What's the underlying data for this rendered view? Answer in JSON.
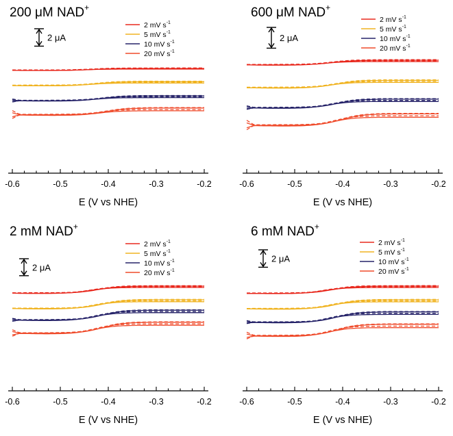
{
  "figure": {
    "colors": {
      "2 mV s-1": "#e8281d",
      "5 mV s-1": "#f0b320",
      "10 mV s-1": "#252268",
      "20 mV s-1": "#ef4a2a",
      "axis": "#000000"
    }
  },
  "chart_data": [
    {
      "type": "line",
      "title": "200 μM NAD",
      "title_sup": "+",
      "xlabel": "E (V vs NHE)",
      "ylabel": "",
      "xlim": [
        -0.6,
        -0.2
      ],
      "x_ticks": [
        -0.6,
        -0.5,
        -0.4,
        -0.3,
        -0.2
      ],
      "x_tick_labels": [
        "-0.6",
        "-0.5",
        "-0.4",
        "-0.3",
        "-0.2"
      ],
      "scale_bar": {
        "value": 2,
        "label": "2 μA"
      },
      "legend": [
        {
          "label": "2 mV s",
          "sup": "-1"
        },
        {
          "label": "5 mV s",
          "sup": "-1"
        },
        {
          "label": "10 mV s",
          "sup": "-1"
        },
        {
          "label": "20 mV s",
          "sup": "-1"
        }
      ],
      "series": [
        {
          "name": "2 mV s-1",
          "color": "#e8281d",
          "offset_uA": 0,
          "e_half": -0.44,
          "step_uA": 0.35,
          "separation_uA": 0.12,
          "lead_uA": 0.0
        },
        {
          "name": "5 mV s-1",
          "color": "#f0b320",
          "offset_uA": -2.35,
          "e_half": -0.43,
          "step_uA": 0.7,
          "separation_uA": 0.25,
          "lead_uA": 0.0
        },
        {
          "name": "10 mV s-1",
          "color": "#252268",
          "offset_uA": -4.9,
          "e_half": -0.42,
          "step_uA": 0.85,
          "separation_uA": 0.3,
          "lead_uA": 0.2
        },
        {
          "name": "20 mV s-1",
          "color": "#ef4a2a",
          "offset_uA": -7.05,
          "e_half": -0.41,
          "step_uA": 1.2,
          "separation_uA": 0.5,
          "lead_uA": 0.6
        }
      ]
    },
    {
      "type": "line",
      "title": "600 μM NAD",
      "title_sup": "+",
      "xlabel": "E (V vs NHE)",
      "ylabel": "",
      "xlim": [
        -0.6,
        -0.2
      ],
      "x_ticks": [
        -0.6,
        -0.5,
        -0.4,
        -0.3,
        -0.2
      ],
      "x_tick_labels": [
        "-0.6",
        "-0.5",
        "-0.4",
        "-0.3",
        "-0.2"
      ],
      "scale_bar": {
        "value": 2,
        "label": "2 μA"
      },
      "legend": [
        {
          "label": "2 mV s",
          "sup": "-1"
        },
        {
          "label": "5 mV s",
          "sup": "-1"
        },
        {
          "label": "10 mV s",
          "sup": "-1"
        },
        {
          "label": "20 mV s",
          "sup": "-1"
        }
      ],
      "series": [
        {
          "name": "2 mV s-1",
          "color": "#e8281d",
          "offset_uA": 0,
          "e_half": -0.43,
          "step_uA": 0.7,
          "separation_uA": 0.2,
          "lead_uA": 0.0
        },
        {
          "name": "5 mV s-1",
          "color": "#f0b320",
          "offset_uA": -3.0,
          "e_half": -0.42,
          "step_uA": 1.1,
          "separation_uA": 0.3,
          "lead_uA": 0.0
        },
        {
          "name": "10 mV s-1",
          "color": "#252268",
          "offset_uA": -5.8,
          "e_half": -0.42,
          "step_uA": 1.3,
          "separation_uA": 0.35,
          "lead_uA": 0.2
        },
        {
          "name": "20 mV s-1",
          "color": "#ef4a2a",
          "offset_uA": -8.0,
          "e_half": -0.41,
          "step_uA": 1.7,
          "separation_uA": 0.5,
          "lead_uA": 0.6
        }
      ]
    },
    {
      "type": "line",
      "title": "2 mM NAD",
      "title_sup": "+",
      "xlabel": "E (V vs NHE)",
      "ylabel": "",
      "xlim": [
        -0.6,
        -0.2
      ],
      "x_ticks": [
        -0.6,
        -0.5,
        -0.4,
        -0.3,
        -0.2
      ],
      "x_tick_labels": [
        "-0.6",
        "-0.5",
        "-0.4",
        "-0.3",
        "-0.2"
      ],
      "scale_bar": {
        "value": 2,
        "label": "2 μA"
      },
      "legend": [
        {
          "label": "2 mV s",
          "sup": "-1"
        },
        {
          "label": "5 mV s",
          "sup": "-1"
        },
        {
          "label": "10 mV s",
          "sup": "-1"
        },
        {
          "label": "20 mV s",
          "sup": "-1"
        }
      ],
      "series": [
        {
          "name": "2 mV s-1",
          "color": "#e8281d",
          "offset_uA": 0,
          "e_half": -0.43,
          "step_uA": 1.3,
          "separation_uA": 0.25,
          "lead_uA": 0.0
        },
        {
          "name": "5 mV s-1",
          "color": "#f0b320",
          "offset_uA": -2.5,
          "e_half": -0.42,
          "step_uA": 1.6,
          "separation_uA": 0.35,
          "lead_uA": 0.0
        },
        {
          "name": "10 mV s-1",
          "color": "#252268",
          "offset_uA": -4.4,
          "e_half": -0.42,
          "step_uA": 1.8,
          "separation_uA": 0.45,
          "lead_uA": 0.2
        },
        {
          "name": "20 mV s-1",
          "color": "#ef4a2a",
          "offset_uA": -6.6,
          "e_half": -0.42,
          "step_uA": 2.0,
          "separation_uA": 0.55,
          "lead_uA": 0.5
        }
      ]
    },
    {
      "type": "line",
      "title": "6 mM NAD",
      "title_sup": "+",
      "xlabel": "E (V vs NHE)",
      "ylabel": "",
      "xlim": [
        -0.6,
        -0.2
      ],
      "x_ticks": [
        -0.6,
        -0.5,
        -0.4,
        -0.3,
        -0.2
      ],
      "x_tick_labels": [
        "-0.6",
        "-0.5",
        "-0.4",
        "-0.3",
        "-0.2"
      ],
      "scale_bar": {
        "value": 2,
        "label": "2 μA"
      },
      "legend": [
        {
          "label": "2 mV s",
          "sup": "-1"
        },
        {
          "label": "5 mV s",
          "sup": "-1"
        },
        {
          "label": "10 mV s",
          "sup": "-1"
        },
        {
          "label": "20 mV s",
          "sup": "-1"
        }
      ],
      "series": [
        {
          "name": "2 mV s-1",
          "color": "#e8281d",
          "offset_uA": 0,
          "e_half": -0.43,
          "step_uA": 1.3,
          "separation_uA": 0.25,
          "lead_uA": 0.0
        },
        {
          "name": "5 mV s-1",
          "color": "#f0b320",
          "offset_uA": -2.45,
          "e_half": -0.42,
          "step_uA": 1.6,
          "separation_uA": 0.35,
          "lead_uA": 0.0
        },
        {
          "name": "10 mV s-1",
          "color": "#252268",
          "offset_uA": -4.6,
          "e_half": -0.42,
          "step_uA": 1.85,
          "separation_uA": 0.45,
          "lead_uA": 0.2
        },
        {
          "name": "20 mV s-1",
          "color": "#ef4a2a",
          "offset_uA": -6.8,
          "e_half": -0.42,
          "step_uA": 2.05,
          "separation_uA": 0.6,
          "lead_uA": 0.5
        }
      ]
    }
  ]
}
